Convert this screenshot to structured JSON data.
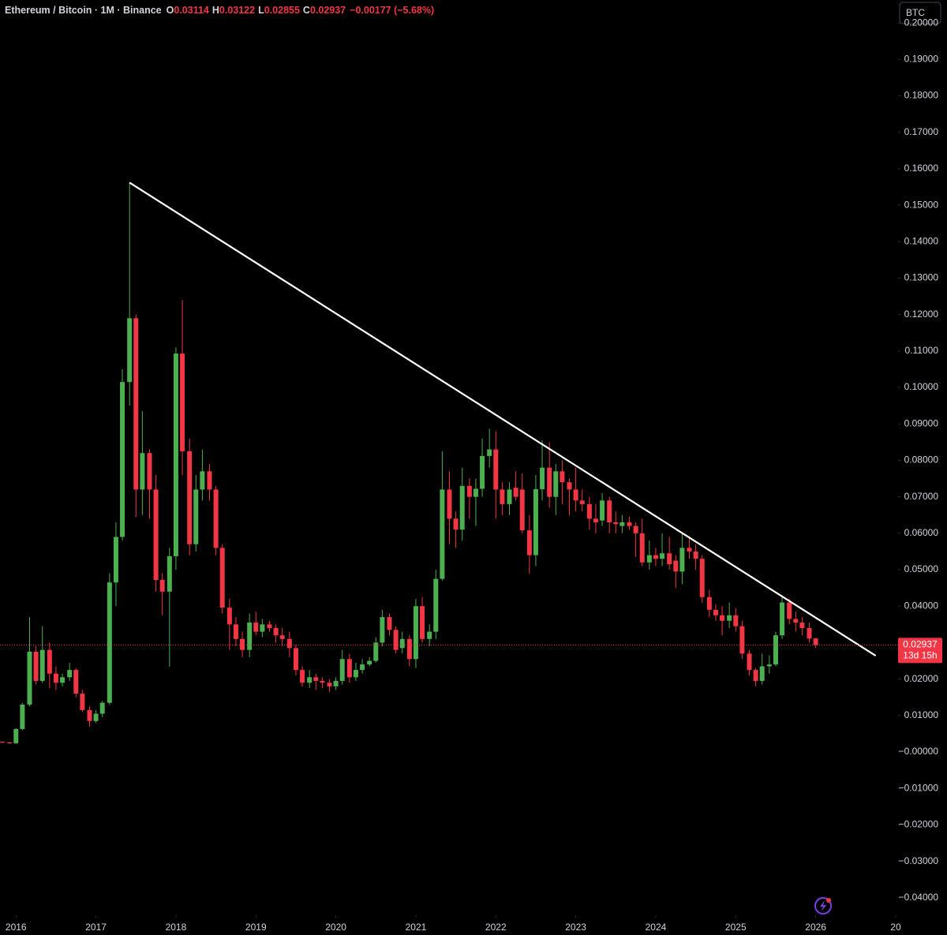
{
  "header": {
    "symbol": "Ethereum / Bitcoin · 1M · Binance",
    "ohlc": [
      {
        "key": "O",
        "value": "0.03114"
      },
      {
        "key": "H",
        "value": "0.03122"
      },
      {
        "key": "L",
        "value": "0.02855"
      },
      {
        "key": "C",
        "value": "0.02937"
      }
    ],
    "change": "−0.00177 (−5.68%)",
    "currency": "BTC"
  },
  "chart_data": {
    "type": "candlestick",
    "up_color": "#4caf50",
    "down_color": "#f23645",
    "x": [
      2015.83,
      2015.92,
      2016,
      2016.08,
      2016.17,
      2016.25,
      2016.33,
      2016.42,
      2016.5,
      2016.58,
      2016.67,
      2016.75,
      2016.83,
      2016.92,
      2017,
      2017.08,
      2017.17,
      2017.25,
      2017.33,
      2017.42,
      2017.5,
      2017.58,
      2017.67,
      2017.75,
      2017.83,
      2017.92,
      2018,
      2018.08,
      2018.17,
      2018.25,
      2018.33,
      2018.42,
      2018.5,
      2018.58,
      2018.67,
      2018.75,
      2018.83,
      2018.92,
      2019,
      2019.08,
      2019.17,
      2019.25,
      2019.33,
      2019.42,
      2019.5,
      2019.58,
      2019.67,
      2019.75,
      2019.83,
      2019.92,
      2020,
      2020.08,
      2020.17,
      2020.25,
      2020.33,
      2020.42,
      2020.5,
      2020.58,
      2020.67,
      2020.75,
      2020.83,
      2020.92,
      2021,
      2021.08,
      2021.17,
      2021.25,
      2021.33,
      2021.42,
      2021.5,
      2021.58,
      2021.67,
      2021.75,
      2021.83,
      2021.92,
      2022,
      2022.08,
      2022.17,
      2022.25,
      2022.33,
      2022.42,
      2022.5,
      2022.58,
      2022.67,
      2022.75,
      2022.83,
      2022.92,
      2023,
      2023.08,
      2023.17,
      2023.25,
      2023.33,
      2023.42,
      2023.5,
      2023.58,
      2023.67,
      2023.75,
      2023.83,
      2023.92,
      2024,
      2024.08,
      2024.17,
      2024.25,
      2024.33,
      2024.42,
      2024.5,
      2024.58,
      2024.67,
      2024.75,
      2024.83,
      2024.92,
      2025,
      2025.08,
      2025.17,
      2025.25,
      2025.33,
      2025.42,
      2025.5,
      2025.58,
      2025.67,
      2025.75,
      2025.83,
      2025.92,
      2026
    ],
    "open": [
      0.0028,
      0.0026,
      0.0024,
      0.0063,
      0.013,
      0.0275,
      0.0195,
      0.028,
      0.0215,
      0.019,
      0.0205,
      0.0225,
      0.016,
      0.0115,
      0.0085,
      0.0105,
      0.0135,
      0.0465,
      0.059,
      0.1015,
      0.119,
      0.072,
      0.082,
      0.072,
      0.0472,
      0.044,
      0.0537,
      0.1093,
      0.0825,
      0.057,
      0.072,
      0.077,
      0.072,
      0.056,
      0.0396,
      0.035,
      0.031,
      0.028,
      0.0355,
      0.033,
      0.035,
      0.034,
      0.032,
      0.031,
      0.0285,
      0.0225,
      0.019,
      0.0205,
      0.0195,
      0.019,
      0.018,
      0.0195,
      0.0255,
      0.0205,
      0.0225,
      0.024,
      0.025,
      0.03,
      0.037,
      0.0335,
      0.0285,
      0.031,
      0.0255,
      0.04,
      0.031,
      0.033,
      0.0475,
      0.072,
      0.064,
      0.061,
      0.073,
      0.07,
      0.0722,
      0.0812,
      0.083,
      0.072,
      0.068,
      0.0725,
      0.072,
      0.0608,
      0.054,
      0.0721,
      0.078,
      0.07,
      0.077,
      0.074,
      0.072,
      0.069,
      0.068,
      0.064,
      0.0635,
      0.069,
      0.063,
      0.062,
      0.063,
      0.062,
      0.06,
      0.052,
      0.054,
      0.053,
      0.0545,
      0.0525,
      0.0495,
      0.056,
      0.055,
      0.053,
      0.0425,
      0.039,
      0.0375,
      0.036,
      0.0375,
      0.0345,
      0.027,
      0.0225,
      0.0195,
      0.0235,
      0.024,
      0.032,
      0.041,
      0.0365,
      0.0355,
      0.034,
      0.03114
    ],
    "high": [
      0.0029,
      0.0028,
      0.0065,
      0.0135,
      0.037,
      0.029,
      0.0345,
      0.03,
      0.0235,
      0.0215,
      0.0245,
      0.023,
      0.017,
      0.0125,
      0.0115,
      0.014,
      0.049,
      0.063,
      0.105,
      0.1562,
      0.12,
      0.0935,
      0.083,
      0.076,
      0.049,
      0.056,
      0.111,
      0.124,
      0.086,
      0.076,
      0.083,
      0.079,
      0.073,
      0.057,
      0.042,
      0.037,
      0.033,
      0.038,
      0.0385,
      0.0365,
      0.036,
      0.035,
      0.034,
      0.033,
      0.0295,
      0.0235,
      0.0225,
      0.0215,
      0.0205,
      0.02,
      0.0205,
      0.028,
      0.027,
      0.0245,
      0.0255,
      0.026,
      0.0315,
      0.039,
      0.038,
      0.0345,
      0.033,
      0.032,
      0.042,
      0.0425,
      0.035,
      0.05,
      0.0825,
      0.077,
      0.066,
      0.078,
      0.075,
      0.075,
      0.086,
      0.0887,
      0.088,
      0.074,
      0.074,
      0.077,
      0.0764,
      0.065,
      0.076,
      0.0855,
      0.085,
      0.079,
      0.08,
      0.075,
      0.078,
      0.072,
      0.07,
      0.068,
      0.071,
      0.07,
      0.066,
      0.065,
      0.0645,
      0.063,
      0.064,
      0.058,
      0.056,
      0.06,
      0.059,
      0.054,
      0.06,
      0.059,
      0.057,
      0.054,
      0.0445,
      0.0405,
      0.04,
      0.041,
      0.0395,
      0.036,
      0.028,
      0.023,
      0.027,
      0.0265,
      0.033,
      0.043,
      0.042,
      0.0385,
      0.037,
      0.0355,
      0.03122
    ],
    "low": [
      0.0024,
      0.0022,
      0.0022,
      0.006,
      0.0125,
      0.0185,
      0.019,
      0.0175,
      0.017,
      0.018,
      0.0195,
      0.015,
      0.011,
      0.007,
      0.008,
      0.0095,
      0.013,
      0.04,
      0.058,
      0.095,
      0.0645,
      0.065,
      0.064,
      0.044,
      0.0375,
      0.0234,
      0.05,
      0.076,
      0.054,
      0.055,
      0.069,
      0.069,
      0.054,
      0.038,
      0.028,
      0.029,
      0.026,
      0.026,
      0.032,
      0.0315,
      0.033,
      0.03,
      0.029,
      0.026,
      0.021,
      0.018,
      0.0175,
      0.017,
      0.0175,
      0.0165,
      0.017,
      0.0185,
      0.019,
      0.0195,
      0.0215,
      0.0235,
      0.0245,
      0.029,
      0.032,
      0.027,
      0.027,
      0.0235,
      0.023,
      0.03,
      0.029,
      0.031,
      0.047,
      0.057,
      0.056,
      0.058,
      0.064,
      0.062,
      0.07,
      0.078,
      0.064,
      0.065,
      0.065,
      0.069,
      0.06,
      0.0489,
      0.051,
      0.069,
      0.067,
      0.065,
      0.068,
      0.065,
      0.066,
      0.066,
      0.061,
      0.06,
      0.062,
      0.06,
      0.06,
      0.06,
      0.061,
      0.0535,
      0.051,
      0.05,
      0.051,
      0.051,
      0.05,
      0.045,
      0.046,
      0.053,
      0.05,
      0.041,
      0.037,
      0.036,
      0.032,
      0.034,
      0.033,
      0.0255,
      0.021,
      0.018,
      0.0185,
      0.0215,
      0.0235,
      0.031,
      0.035,
      0.033,
      0.032,
      0.03,
      0.02855
    ],
    "close": [
      0.0026,
      0.0024,
      0.0063,
      0.013,
      0.0275,
      0.0195,
      0.028,
      0.0215,
      0.019,
      0.0205,
      0.0225,
      0.016,
      0.0115,
      0.0085,
      0.0105,
      0.0135,
      0.0465,
      0.059,
      0.1015,
      0.119,
      0.072,
      0.082,
      0.072,
      0.0472,
      0.044,
      0.0537,
      0.1093,
      0.0825,
      0.057,
      0.072,
      0.077,
      0.072,
      0.056,
      0.0396,
      0.035,
      0.031,
      0.028,
      0.0355,
      0.033,
      0.035,
      0.034,
      0.032,
      0.031,
      0.0285,
      0.0225,
      0.019,
      0.0205,
      0.0195,
      0.019,
      0.018,
      0.0195,
      0.0255,
      0.0205,
      0.0225,
      0.024,
      0.025,
      0.03,
      0.037,
      0.0335,
      0.028,
      0.031,
      0.0255,
      0.04,
      0.031,
      0.033,
      0.0475,
      0.072,
      0.064,
      0.061,
      0.073,
      0.07,
      0.0722,
      0.0812,
      0.083,
      0.072,
      0.068,
      0.072,
      0.07,
      0.0608,
      0.054,
      0.0721,
      0.078,
      0.07,
      0.077,
      0.074,
      0.072,
      0.069,
      0.068,
      0.064,
      0.063,
      0.069,
      0.063,
      0.0625,
      0.063,
      0.062,
      0.06,
      0.052,
      0.054,
      0.053,
      0.0545,
      0.0515,
      0.0495,
      0.056,
      0.055,
      0.053,
      0.0425,
      0.039,
      0.0375,
      0.036,
      0.0375,
      0.0345,
      0.027,
      0.0225,
      0.0195,
      0.0235,
      0.024,
      0.032,
      0.041,
      0.0365,
      0.0355,
      0.034,
      0.0311,
      0.02937
    ],
    "trendline": {
      "x": [
        2017.42,
        2026.75
      ],
      "y": [
        0.1562,
        0.0264
      ],
      "color": "#ffffff"
    },
    "last_price": {
      "value": 0.02937,
      "label": "0.02937",
      "countdown": "13d 15h",
      "color": "#f23645"
    },
    "xlim": [
      2015.8,
      2027.03
    ],
    "ylim": [
      -0.0448,
      0.2063
    ],
    "xticks": [
      2016,
      2017,
      2018,
      2019,
      2020,
      2021,
      2022,
      2023,
      2024,
      2025,
      2026,
      {
        "value": 2027,
        "label": "20"
      }
    ],
    "yticks": [
      {
        "value": 0.2,
        "label": "0.20000"
      },
      {
        "value": 0.19,
        "label": "0.19000"
      },
      {
        "value": 0.18,
        "label": "0.18000"
      },
      {
        "value": 0.17,
        "label": "0.17000"
      },
      {
        "value": 0.16,
        "label": "0.16000"
      },
      {
        "value": 0.15,
        "label": "0.15000"
      },
      {
        "value": 0.14,
        "label": "0.14000"
      },
      {
        "value": 0.13,
        "label": "0.13000"
      },
      {
        "value": 0.12,
        "label": "0.12000"
      },
      {
        "value": 0.11,
        "label": "0.11000"
      },
      {
        "value": 0.1,
        "label": "0.10000"
      },
      {
        "value": 0.09,
        "label": "0.09000"
      },
      {
        "value": 0.08,
        "label": "0.08000"
      },
      {
        "value": 0.07,
        "label": "0.07000"
      },
      {
        "value": 0.06,
        "label": "0.06000"
      },
      {
        "value": 0.05,
        "label": "0.05000"
      },
      {
        "value": 0.04,
        "label": "0.04000"
      },
      {
        "value": 0.03,
        "label": "0.03000"
      },
      {
        "value": 0.02,
        "label": "0.02000"
      },
      {
        "value": 0.01,
        "label": "0.01000"
      },
      {
        "value": 0,
        "label": "−0.00000"
      },
      {
        "value": -0.01,
        "label": "−0.01000"
      },
      {
        "value": -0.02,
        "label": "−0.02000"
      },
      {
        "value": -0.03,
        "label": "−0.03000"
      },
      {
        "value": -0.04,
        "label": "−0.04000"
      }
    ]
  }
}
